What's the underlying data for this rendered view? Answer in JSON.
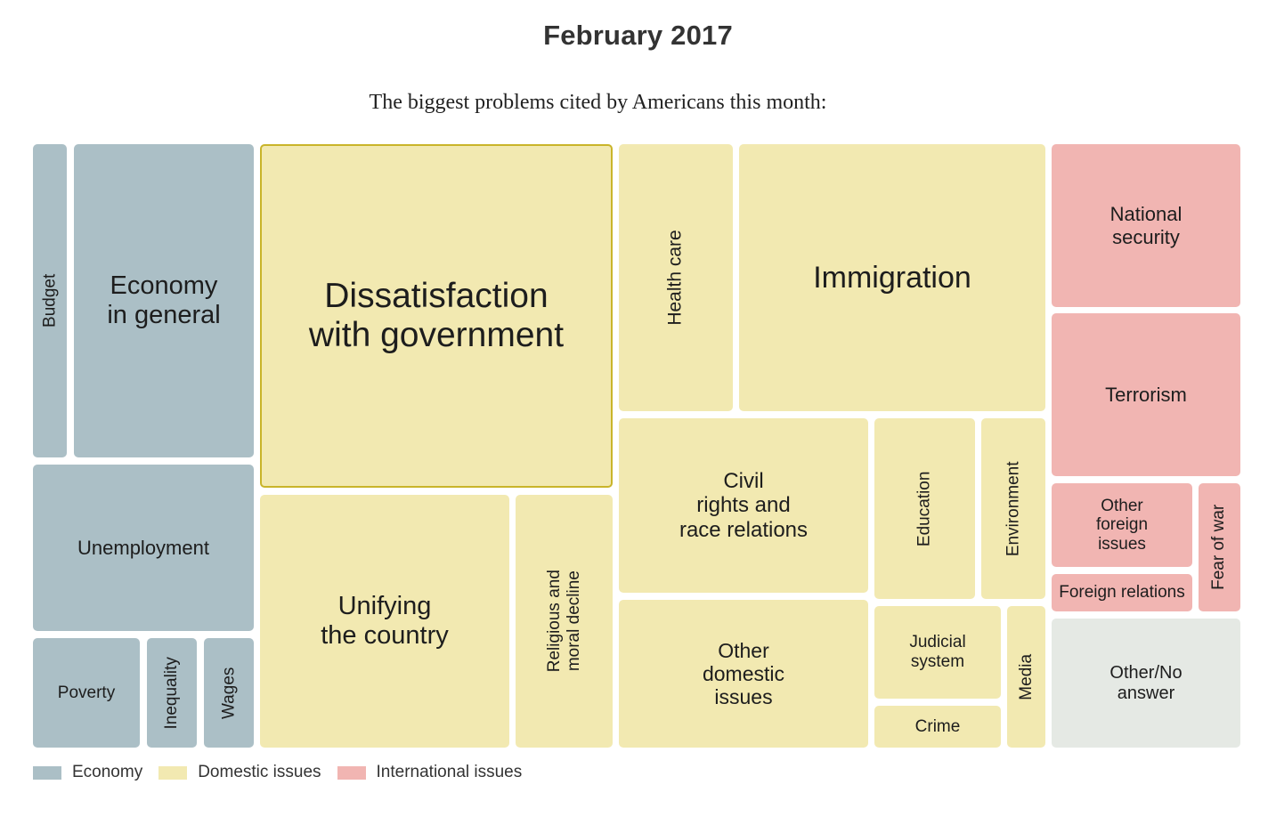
{
  "title": "February 2017",
  "subtitle": "The biggest problems cited by Americans this month:",
  "chart_data": {
    "type": "treemap",
    "title": "February 2017",
    "subtitle": "The biggest problems cited by Americans this month:",
    "categories": [
      {
        "key": "economy",
        "name": "Economy",
        "color": "#abbfc6"
      },
      {
        "key": "domestic",
        "name": "Domestic issues",
        "color": "#f2e9b1"
      },
      {
        "key": "international",
        "name": "International issues",
        "color": "#f1b5b2"
      },
      {
        "key": "other",
        "name": "Other/No answer",
        "color": "#e5e9e4"
      }
    ],
    "items": [
      {
        "label": "Budget",
        "category": "economy"
      },
      {
        "label": "Economy\nin general",
        "category": "economy"
      },
      {
        "label": "Unemployment",
        "category": "economy"
      },
      {
        "label": "Poverty",
        "category": "economy"
      },
      {
        "label": "Inequality",
        "category": "economy"
      },
      {
        "label": "Wages",
        "category": "economy"
      },
      {
        "label": "Dissatisfaction\nwith government",
        "category": "domestic",
        "highlighted": true
      },
      {
        "label": "Unifying\nthe country",
        "category": "domestic"
      },
      {
        "label": "Religious and\nmoral decline",
        "category": "domestic"
      },
      {
        "label": "Health care",
        "category": "domestic"
      },
      {
        "label": "Immigration",
        "category": "domestic"
      },
      {
        "label": "Civil\nrights and\nrace relations",
        "category": "domestic"
      },
      {
        "label": "Education",
        "category": "domestic"
      },
      {
        "label": "Environment",
        "category": "domestic"
      },
      {
        "label": "Other\ndomestic\nissues",
        "category": "domestic"
      },
      {
        "label": "Judicial\nsystem",
        "category": "domestic"
      },
      {
        "label": "Crime",
        "category": "domestic"
      },
      {
        "label": "Media",
        "category": "domestic"
      },
      {
        "label": "National\nsecurity",
        "category": "international"
      },
      {
        "label": "Terrorism",
        "category": "international"
      },
      {
        "label": "Other\nforeign\nissues",
        "category": "international"
      },
      {
        "label": "Foreign relations",
        "category": "international"
      },
      {
        "label": "Fear of war",
        "category": "international"
      },
      {
        "label": "Other/No\nanswer",
        "category": "other"
      }
    ],
    "legend": {
      "placement": "bottom-left",
      "entries": [
        "Economy",
        "Domestic issues",
        "International issues"
      ]
    }
  },
  "legend": {
    "economy": "Economy",
    "domestic": "Domestic issues",
    "international": "International issues"
  }
}
